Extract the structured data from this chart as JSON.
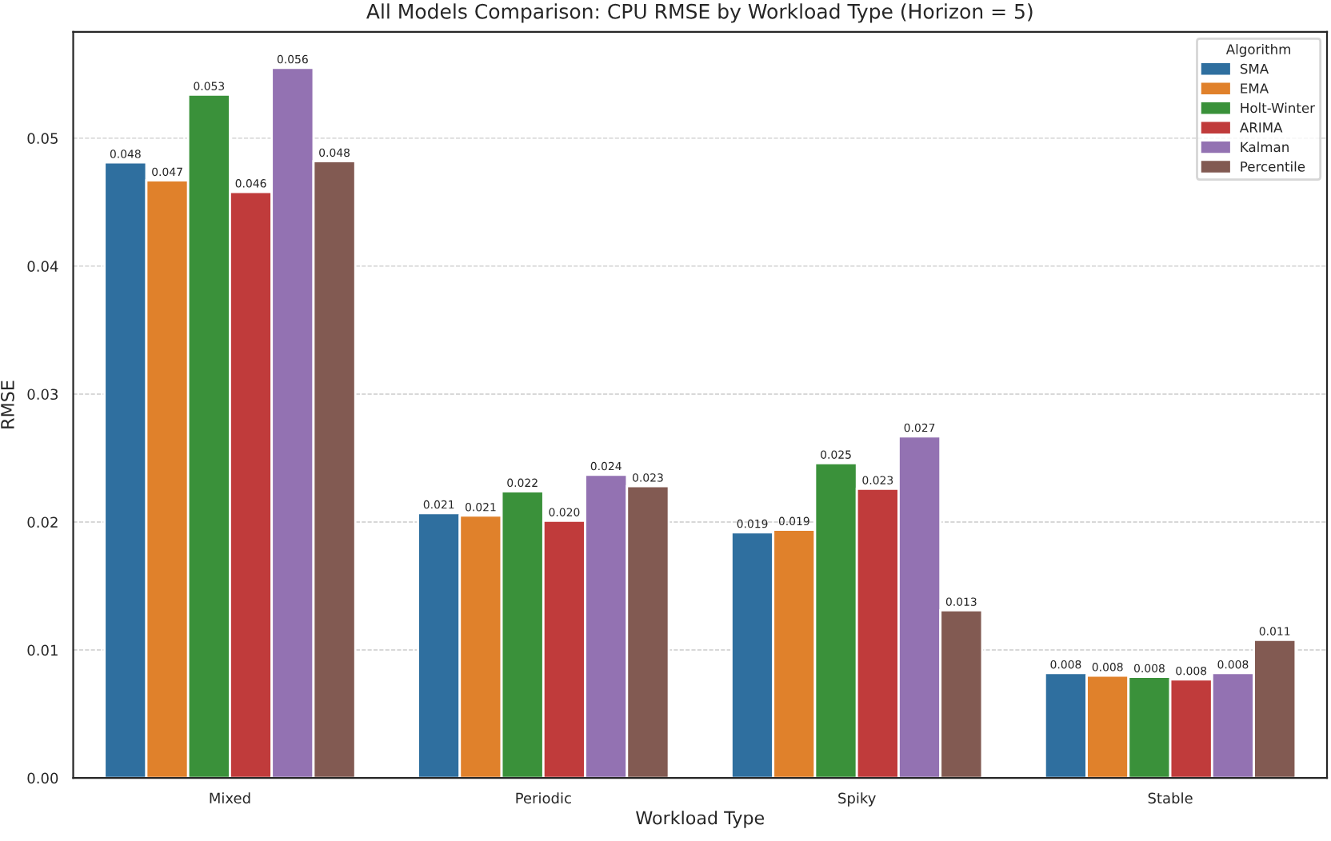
{
  "chart_data": {
    "type": "bar",
    "title": "All Models Comparison: CPU RMSE by Workload Type (Horizon = 5)",
    "xlabel": "Workload Type",
    "ylabel": "RMSE",
    "legend_title": "Algorithm",
    "categories": [
      "Mixed",
      "Periodic",
      "Spiky",
      "Stable"
    ],
    "series": [
      {
        "name": "SMA",
        "color": "#2f6f9f",
        "values": [
          0.0481,
          0.0207,
          0.0192,
          0.0082
        ],
        "value_labels": [
          "0.048",
          "0.021",
          "0.019",
          "0.008"
        ]
      },
      {
        "name": "EMA",
        "color": "#e0812b",
        "values": [
          0.0467,
          0.0205,
          0.0194,
          0.008
        ],
        "value_labels": [
          "0.047",
          "0.021",
          "0.019",
          "0.008"
        ]
      },
      {
        "name": "Holt-Winter",
        "color": "#3a913a",
        "values": [
          0.0534,
          0.0224,
          0.0246,
          0.0079
        ],
        "value_labels": [
          "0.053",
          "0.022",
          "0.025",
          "0.008"
        ]
      },
      {
        "name": "ARIMA",
        "color": "#c03b3b",
        "values": [
          0.0458,
          0.0201,
          0.0226,
          0.0077
        ],
        "value_labels": [
          "0.046",
          "0.020",
          "0.023",
          "0.008"
        ]
      },
      {
        "name": "Kalman",
        "color": "#9372b2",
        "values": [
          0.0555,
          0.0237,
          0.0267,
          0.0082
        ],
        "value_labels": [
          "0.056",
          "0.024",
          "0.027",
          "0.008"
        ]
      },
      {
        "name": "Percentile",
        "color": "#825a52",
        "values": [
          0.0482,
          0.0228,
          0.0131,
          0.0108
        ],
        "value_labels": [
          "0.048",
          "0.023",
          "0.013",
          "0.011"
        ]
      }
    ],
    "ylim": [
      0,
      0.0583
    ],
    "yticks": [
      {
        "value": 0,
        "label": "0.00"
      },
      0.01,
      0.02,
      0.03,
      0.04,
      0.05
    ],
    "grid": "y",
    "legend": "top right"
  }
}
